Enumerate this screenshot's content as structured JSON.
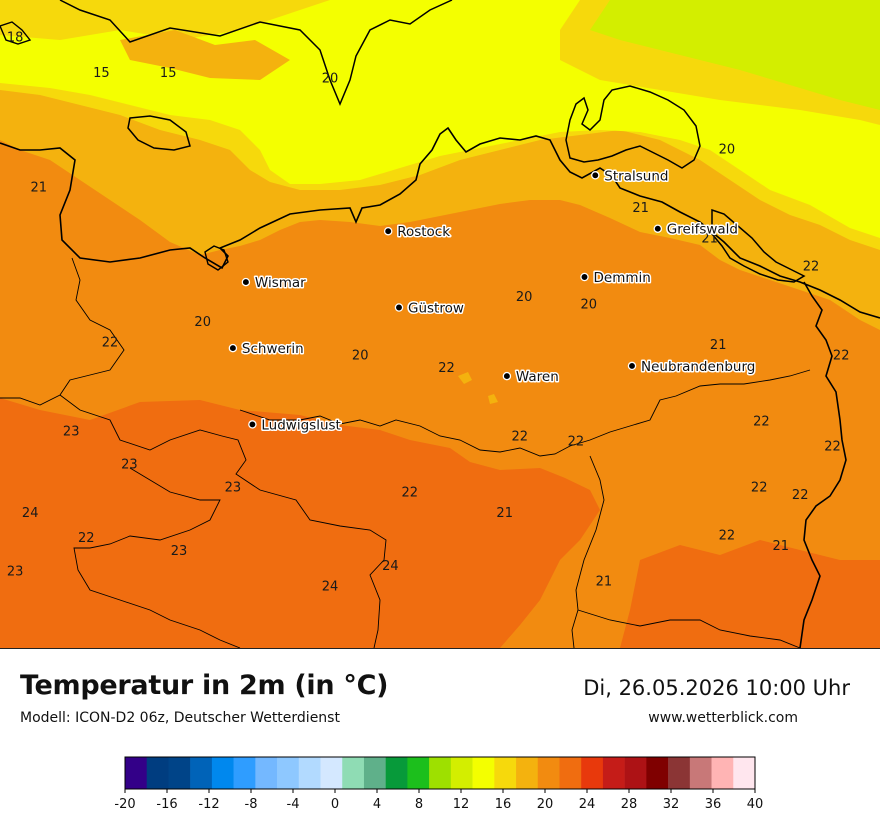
{
  "title": "Temperatur in 2m (in °C)",
  "model": "Modell: ICON-D2 06z, Deutscher Wetterdienst",
  "datetime": "Di, 26.05.2026 10:00 Uhr",
  "website": "www.wetterblick.com",
  "cities": [
    {
      "name": "Stralsund",
      "lon": 13.09,
      "lat": 54.31
    },
    {
      "name": "Rostock",
      "lon": 12.13,
      "lat": 54.09
    },
    {
      "name": "Greifswald",
      "lon": 13.38,
      "lat": 54.1
    },
    {
      "name": "Wismar",
      "lon": 11.47,
      "lat": 53.89
    },
    {
      "name": "Demmin",
      "lon": 13.04,
      "lat": 53.91
    },
    {
      "name": "Güstrow",
      "lon": 12.18,
      "lat": 53.79
    },
    {
      "name": "Schwerin",
      "lon": 11.41,
      "lat": 53.63
    },
    {
      "name": "Neubrandenburg",
      "lon": 13.26,
      "lat": 53.56
    },
    {
      "name": "Waren",
      "lon": 12.68,
      "lat": 53.52
    },
    {
      "name": "Ludwigslust",
      "lon": 11.5,
      "lat": 53.33
    }
  ],
  "temperature_labels": [
    {
      "value": "18",
      "lon": 10.4,
      "lat": 54.85
    },
    {
      "value": "15",
      "lon": 10.8,
      "lat": 54.71
    },
    {
      "value": "15",
      "lon": 11.11,
      "lat": 54.71
    },
    {
      "value": "20",
      "lon": 11.86,
      "lat": 54.69
    },
    {
      "value": "20",
      "lon": 13.7,
      "lat": 54.41
    },
    {
      "value": "21",
      "lon": 10.51,
      "lat": 54.26
    },
    {
      "value": "21",
      "lon": 13.3,
      "lat": 54.18
    },
    {
      "value": "21",
      "lon": 13.62,
      "lat": 54.06
    },
    {
      "value": "22",
      "lon": 14.09,
      "lat": 53.95
    },
    {
      "value": "20",
      "lon": 12.76,
      "lat": 53.83
    },
    {
      "value": "20",
      "lon": 13.06,
      "lat": 53.8
    },
    {
      "value": "20",
      "lon": 11.27,
      "lat": 53.73
    },
    {
      "value": "22",
      "lon": 10.84,
      "lat": 53.65
    },
    {
      "value": "21",
      "lon": 13.66,
      "lat": 53.64
    },
    {
      "value": "22",
      "lon": 14.23,
      "lat": 53.6
    },
    {
      "value": "20",
      "lon": 12.0,
      "lat": 53.6
    },
    {
      "value": "22",
      "lon": 12.4,
      "lat": 53.55
    },
    {
      "value": "23",
      "lon": 10.66,
      "lat": 53.3
    },
    {
      "value": "22",
      "lon": 13.86,
      "lat": 53.34
    },
    {
      "value": "22",
      "lon": 12.74,
      "lat": 53.28
    },
    {
      "value": "22",
      "lon": 13.0,
      "lat": 53.26
    },
    {
      "value": "22",
      "lon": 14.19,
      "lat": 53.24
    },
    {
      "value": "23",
      "lon": 10.93,
      "lat": 53.17
    },
    {
      "value": "22",
      "lon": 13.85,
      "lat": 53.08
    },
    {
      "value": "23",
      "lon": 11.41,
      "lat": 53.08
    },
    {
      "value": "22",
      "lon": 12.23,
      "lat": 53.06
    },
    {
      "value": "22",
      "lon": 14.04,
      "lat": 53.05
    },
    {
      "value": "24",
      "lon": 10.47,
      "lat": 52.98
    },
    {
      "value": "21",
      "lon": 12.67,
      "lat": 52.98
    },
    {
      "value": "22",
      "lon": 10.73,
      "lat": 52.88
    },
    {
      "value": "22",
      "lon": 13.7,
      "lat": 52.89
    },
    {
      "value": "21",
      "lon": 13.95,
      "lat": 52.85
    },
    {
      "value": "23",
      "lon": 11.16,
      "lat": 52.83
    },
    {
      "value": "24",
      "lon": 12.14,
      "lat": 52.77
    },
    {
      "value": "23",
      "lon": 10.4,
      "lat": 52.75
    },
    {
      "value": "21",
      "lon": 13.13,
      "lat": 52.71
    },
    {
      "value": "24",
      "lon": 11.86,
      "lat": 52.69
    }
  ],
  "colorbar": {
    "colors": [
      "#330088",
      "#003d80",
      "#004488",
      "#0063b8",
      "#0088ee",
      "#2f9dff",
      "#74b8ff",
      "#8ec8ff",
      "#b2daff",
      "#d4e8ff",
      "#8fdcb4",
      "#5fb08a",
      "#079a3a",
      "#1cbf1c",
      "#9ee000",
      "#d3ee00",
      "#f4ff00",
      "#f6d90c",
      "#f4b20e",
      "#f28b10",
      "#f06d10",
      "#e8390c",
      "#c51c18",
      "#ad1215",
      "#7f0000",
      "#8b3535",
      "#c87878",
      "#ffb4b4",
      "#ffe6ee"
    ],
    "tick_labels": [
      "-20",
      "-16",
      "-12",
      "-8",
      "-4",
      "0",
      "4",
      "8",
      "12",
      "16",
      "20",
      "24",
      "28",
      "32",
      "36",
      "40"
    ]
  }
}
